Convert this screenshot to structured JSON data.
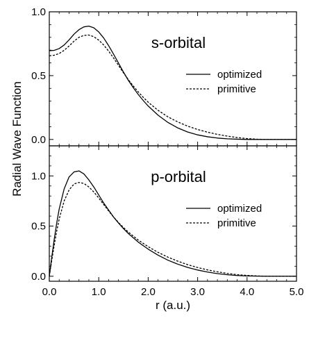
{
  "chart_data": {
    "type": "line",
    "xlabel": "r (a.u.)",
    "ylabel": "Radial Wave Function",
    "xlim": [
      0,
      5
    ],
    "x_ticks": [
      "0.0",
      "1.0",
      "2.0",
      "3.0",
      "4.0",
      "5.0"
    ],
    "grid": false,
    "legend_placement": "right",
    "panels": [
      {
        "title": "s-orbital",
        "ylim": [
          -0.05,
          1.0
        ],
        "y_ticks": [
          {
            "value": 0.0,
            "label": "0.0"
          },
          {
            "value": 0.5,
            "label": "0.5"
          },
          {
            "value": 1.0,
            "label": "1.0"
          }
        ],
        "series": [
          {
            "name": "optimized",
            "style": "solid",
            "x": [
              0.0,
              0.1,
              0.2,
              0.3,
              0.4,
              0.5,
              0.6,
              0.7,
              0.8,
              0.9,
              1.0,
              1.1,
              1.2,
              1.3,
              1.4,
              1.5,
              1.6,
              1.7,
              1.8,
              1.9,
              2.0,
              2.2,
              2.4,
              2.6,
              2.8,
              3.0,
              3.2,
              3.4,
              3.6,
              3.8,
              4.0,
              4.2,
              4.4,
              4.6,
              4.8,
              5.0
            ],
            "y": [
              0.695,
              0.698,
              0.712,
              0.74,
              0.78,
              0.825,
              0.86,
              0.882,
              0.888,
              0.875,
              0.842,
              0.795,
              0.735,
              0.668,
              0.598,
              0.528,
              0.462,
              0.405,
              0.352,
              0.305,
              0.262,
              0.19,
              0.133,
              0.09,
              0.058,
              0.036,
              0.021,
              0.011,
              0.005,
              0.002,
              0.0,
              0.0,
              0.0,
              0.0,
              0.0,
              0.0
            ]
          },
          {
            "name": "primitive",
            "style": "dashed",
            "x": [
              0.0,
              0.1,
              0.2,
              0.3,
              0.4,
              0.5,
              0.6,
              0.7,
              0.8,
              0.9,
              1.0,
              1.1,
              1.2,
              1.3,
              1.4,
              1.5,
              1.6,
              1.7,
              1.8,
              1.9,
              2.0,
              2.2,
              2.4,
              2.6,
              2.8,
              3.0,
              3.2,
              3.4,
              3.6,
              3.8,
              4.0,
              4.2,
              4.4,
              4.6,
              4.8,
              5.0
            ],
            "y": [
              0.655,
              0.66,
              0.673,
              0.698,
              0.732,
              0.77,
              0.8,
              0.815,
              0.818,
              0.805,
              0.778,
              0.74,
              0.692,
              0.638,
              0.58,
              0.522,
              0.468,
              0.418,
              0.372,
              0.33,
              0.292,
              0.228,
              0.177,
              0.137,
              0.104,
              0.078,
              0.057,
              0.04,
              0.026,
              0.015,
              0.007,
              0.002,
              0.0,
              0.0,
              0.0,
              0.0
            ]
          }
        ]
      },
      {
        "title": "p-orbital",
        "ylim": [
          -0.05,
          1.3
        ],
        "y_ticks": [
          {
            "value": 0.0,
            "label": "0.0"
          },
          {
            "value": 0.5,
            "label": "0.5"
          },
          {
            "value": 1.0,
            "label": "1.0"
          }
        ],
        "series": [
          {
            "name": "optimized",
            "style": "solid",
            "x": [
              0.0,
              0.05,
              0.1,
              0.15,
              0.2,
              0.3,
              0.4,
              0.5,
              0.6,
              0.7,
              0.8,
              0.9,
              1.0,
              1.1,
              1.2,
              1.3,
              1.4,
              1.5,
              1.6,
              1.8,
              2.0,
              2.2,
              2.4,
              2.6,
              2.8,
              3.0,
              3.2,
              3.4,
              3.6,
              3.8,
              4.0,
              4.2,
              4.4,
              4.6,
              4.8,
              5.0
            ],
            "y": [
              0.0,
              0.19,
              0.37,
              0.53,
              0.67,
              0.87,
              0.99,
              1.04,
              1.05,
              1.02,
              0.96,
              0.89,
              0.81,
              0.73,
              0.66,
              0.59,
              0.53,
              0.475,
              0.425,
              0.34,
              0.27,
              0.21,
              0.16,
              0.12,
              0.088,
              0.062,
              0.042,
              0.026,
              0.015,
              0.007,
              0.003,
              0.001,
              0.0,
              0.0,
              0.0,
              0.0
            ]
          },
          {
            "name": "primitive",
            "style": "dashed",
            "x": [
              0.0,
              0.05,
              0.1,
              0.15,
              0.2,
              0.3,
              0.4,
              0.5,
              0.6,
              0.7,
              0.8,
              0.9,
              1.0,
              1.1,
              1.2,
              1.3,
              1.4,
              1.5,
              1.6,
              1.8,
              2.0,
              2.2,
              2.4,
              2.6,
              2.8,
              3.0,
              3.2,
              3.4,
              3.6,
              3.8,
              4.0,
              4.2,
              4.4,
              4.6,
              4.8,
              5.0
            ],
            "y": [
              0.0,
              0.16,
              0.31,
              0.45,
              0.57,
              0.75,
              0.86,
              0.92,
              0.935,
              0.925,
              0.89,
              0.84,
              0.78,
              0.715,
              0.65,
              0.59,
              0.535,
              0.485,
              0.44,
              0.36,
              0.295,
              0.238,
              0.19,
              0.15,
              0.115,
              0.087,
              0.063,
              0.044,
              0.028,
              0.016,
              0.008,
              0.003,
              0.0,
              0.0,
              0.0,
              0.0
            ]
          }
        ]
      }
    ]
  }
}
